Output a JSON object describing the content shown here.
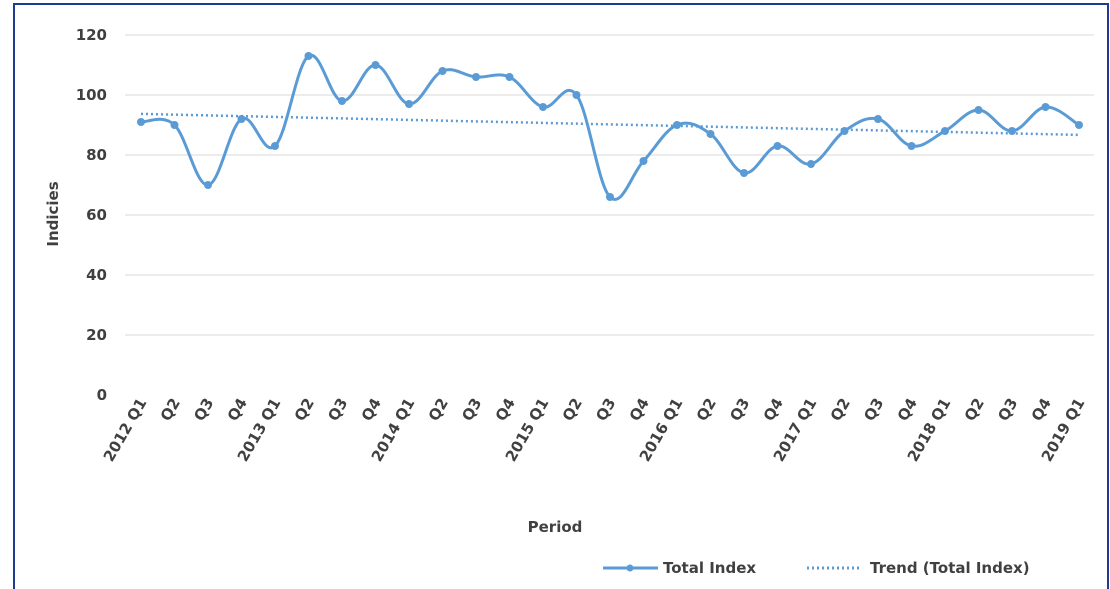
{
  "chart_data": {
    "type": "line",
    "xlabel": "Period",
    "ylabel": "Indicies",
    "ylim": [
      0,
      120
    ],
    "yticks": [
      0,
      20,
      40,
      60,
      80,
      100,
      120
    ],
    "grid": "horizontal",
    "legend_position": "bottom-right",
    "categories": [
      "2012 Q1",
      "Q2",
      "Q3",
      "Q4",
      "2013 Q1",
      "Q2",
      "Q3",
      "Q4",
      "2014 Q1",
      "Q2",
      "Q3",
      "Q4",
      "2015 Q1",
      "Q2",
      "Q3",
      "Q4",
      "2016 Q1",
      "Q2",
      "Q3",
      "Q4",
      "2017 Q1",
      "Q2",
      "Q3",
      "Q4",
      "2018 Q1",
      "Q2",
      "Q3",
      "Q4",
      "2019 Q1"
    ],
    "series": [
      {
        "name": "Total Index",
        "style": "solid-markers",
        "color": "#5b9bd5",
        "values": [
          91,
          90,
          70,
          92,
          83,
          113,
          98,
          110,
          97,
          108,
          106,
          106,
          96,
          100,
          66,
          78,
          90,
          87,
          74,
          83,
          77,
          88,
          92,
          83,
          88,
          95,
          88,
          96,
          90
        ]
      },
      {
        "name": "Trend (Total Index)",
        "style": "dotted",
        "color": "#5b9bd5",
        "values_endpoints": [
          93.7,
          86.7
        ]
      }
    ]
  }
}
